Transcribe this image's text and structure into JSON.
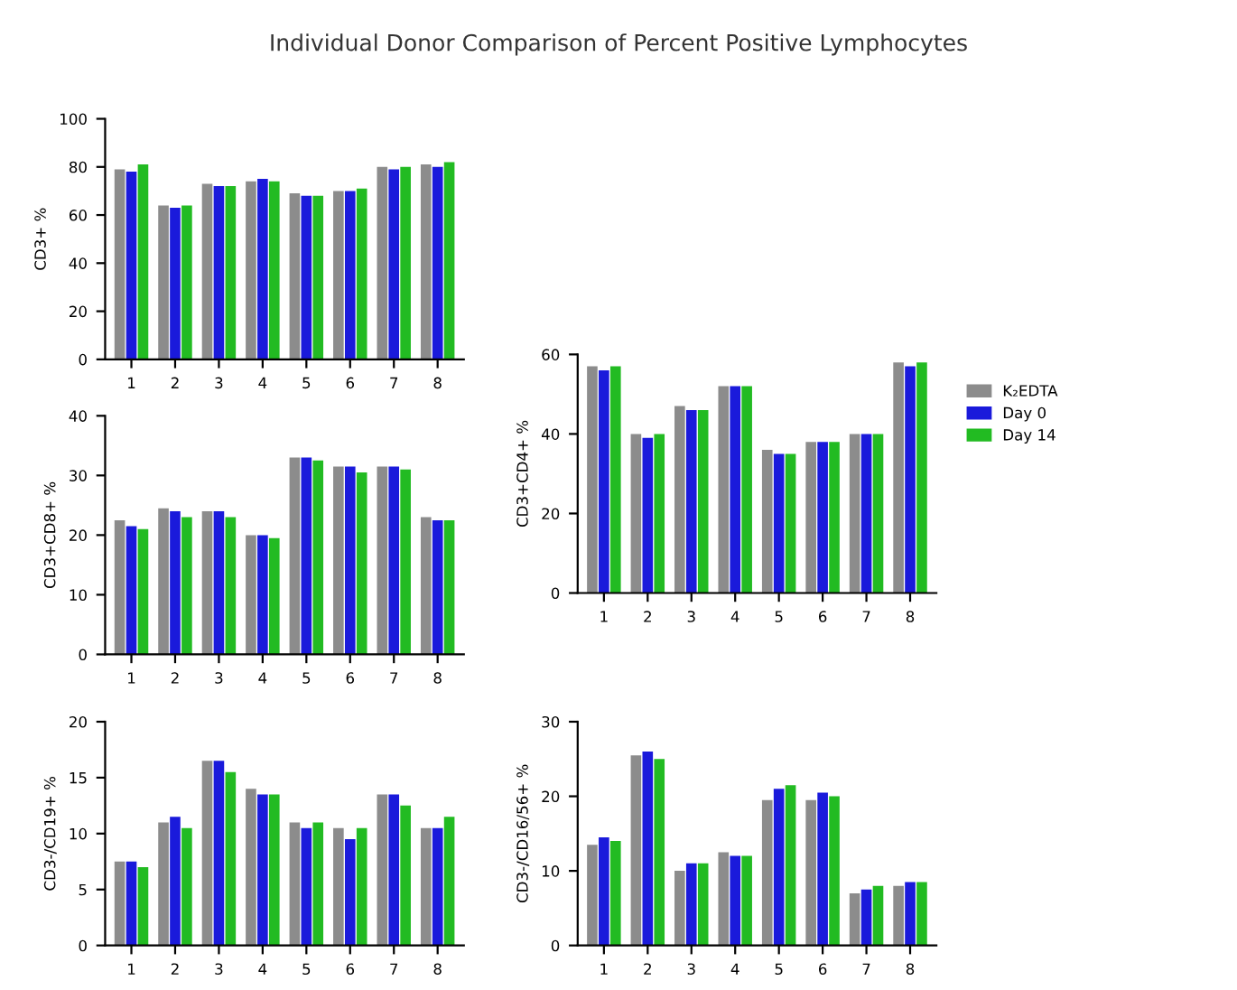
{
  "chart_data": [
    {
      "type": "bar",
      "title": "Individual Donor Comparison of Percent Positive Lymphocytes",
      "ylabel": "CD3+ %",
      "categories": [
        "1",
        "2",
        "3",
        "4",
        "5",
        "6",
        "7",
        "8"
      ],
      "ylim": [
        0,
        100
      ],
      "yticks": [
        0,
        20,
        40,
        60,
        80,
        100
      ],
      "grid": false,
      "legend": false,
      "series": [
        {
          "color": "#8c8c8c",
          "values": [
            79,
            64,
            73,
            74,
            69,
            70,
            80,
            81
          ]
        },
        {
          "color": "#1a1adb",
          "values": [
            78,
            63,
            72,
            75,
            68,
            70,
            79,
            80
          ]
        },
        {
          "color": "#22bb22",
          "values": [
            81,
            64,
            72,
            74,
            68,
            71,
            80,
            82
          ]
        }
      ]
    },
    {
      "type": "bar",
      "ylabel": "CD3+CD8+ %",
      "categories": [
        "1",
        "2",
        "3",
        "4",
        "5",
        "6",
        "7",
        "8"
      ],
      "ylim": [
        0,
        40
      ],
      "yticks": [
        0,
        10,
        20,
        30,
        40
      ],
      "grid": false,
      "legend": false,
      "series": [
        {
          "color": "#8c8c8c",
          "values": [
            22.5,
            24.5,
            24,
            20,
            33,
            31.5,
            31.5,
            23
          ]
        },
        {
          "color": "#1a1adb",
          "values": [
            21.5,
            24,
            24,
            20,
            33,
            31.5,
            31.5,
            22.5
          ]
        },
        {
          "color": "#22bb22",
          "values": [
            21,
            23,
            23,
            19.5,
            32.5,
            30.5,
            31,
            22.5
          ]
        }
      ]
    },
    {
      "type": "bar",
      "ylabel": "CD3+CD4+ %",
      "categories": [
        "1",
        "2",
        "3",
        "4",
        "5",
        "6",
        "7",
        "8"
      ],
      "ylim": [
        0,
        60
      ],
      "yticks": [
        0,
        20,
        40,
        60
      ],
      "grid": false,
      "legend": "right",
      "series": [
        {
          "name": "K₂EDTA",
          "color": "#8c8c8c",
          "values": [
            57,
            40,
            47,
            52,
            36,
            38,
            40,
            58
          ]
        },
        {
          "name": "Day 0",
          "color": "#1a1adb",
          "values": [
            56,
            39,
            46,
            52,
            35,
            38,
            40,
            57
          ]
        },
        {
          "name": "Day 14",
          "color": "#22bb22",
          "values": [
            57,
            40,
            46,
            52,
            35,
            38,
            40,
            58
          ]
        }
      ]
    },
    {
      "type": "bar",
      "ylabel": "CD3-/CD19+ %",
      "categories": [
        "1",
        "2",
        "3",
        "4",
        "5",
        "6",
        "7",
        "8"
      ],
      "ylim": [
        0,
        20
      ],
      "yticks": [
        0,
        5,
        10,
        15,
        20
      ],
      "grid": false,
      "legend": false,
      "series": [
        {
          "color": "#8c8c8c",
          "values": [
            7.5,
            11,
            16.5,
            14,
            11,
            10.5,
            13.5,
            10.5
          ]
        },
        {
          "color": "#1a1adb",
          "values": [
            7.5,
            11.5,
            16.5,
            13.5,
            10.5,
            9.5,
            13.5,
            10.5
          ]
        },
        {
          "color": "#22bb22",
          "values": [
            7,
            10.5,
            15.5,
            13.5,
            11,
            10.5,
            12.5,
            11.5
          ]
        }
      ]
    },
    {
      "type": "bar",
      "ylabel": "CD3-/CD16/56+ %",
      "categories": [
        "1",
        "2",
        "3",
        "4",
        "5",
        "6",
        "7",
        "8"
      ],
      "ylim": [
        0,
        30
      ],
      "yticks": [
        0,
        10,
        20,
        30
      ],
      "grid": false,
      "legend": false,
      "series": [
        {
          "color": "#8c8c8c",
          "values": [
            13.5,
            25.5,
            10,
            12.5,
            19.5,
            19.5,
            7,
            8
          ]
        },
        {
          "color": "#1a1adb",
          "values": [
            14.5,
            26,
            11,
            12,
            21,
            20.5,
            7.5,
            8.5
          ]
        },
        {
          "color": "#22bb22",
          "values": [
            14,
            25,
            11,
            12,
            21.5,
            20,
            8,
            8.5
          ]
        }
      ]
    }
  ]
}
